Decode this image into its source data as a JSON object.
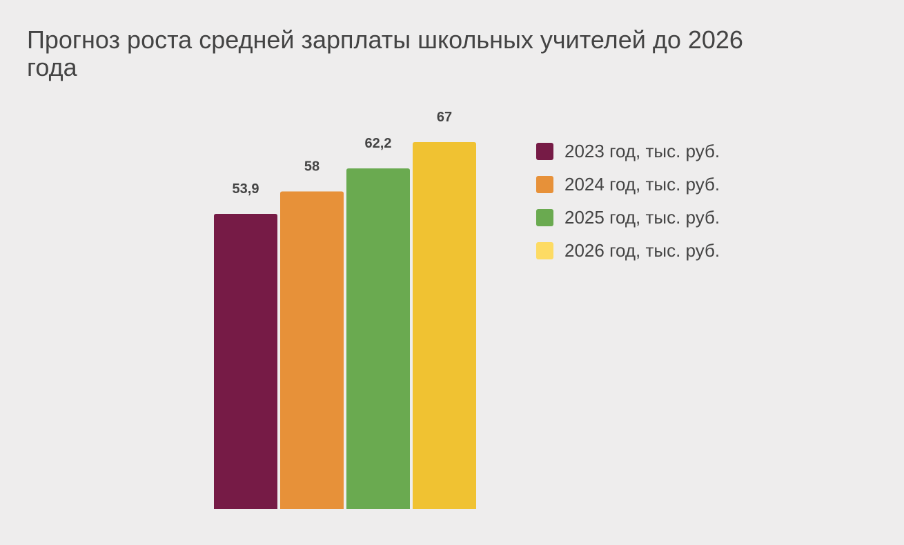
{
  "chart_data": {
    "type": "bar",
    "title": "Прогноз роста средней зарплаты школьных учителей до 2026 года",
    "series": [
      {
        "name": "2023 год, тыс. руб.",
        "value": 53.9,
        "label": "53,9",
        "color": "#761b46"
      },
      {
        "name": "2024 год, тыс. руб.",
        "value": 58,
        "label": "58",
        "color": "#e79139"
      },
      {
        "name": "2025 год, тыс. руб.",
        "value": 62.2,
        "label": "62,2",
        "color": "#6aaa50"
      },
      {
        "name": "2026 год, тыс. руб.",
        "value": 67,
        "label": "67",
        "color": "#f0c232"
      }
    ],
    "legend_colors": [
      "#761b46",
      "#e79139",
      "#6aaa50",
      "#fddb63"
    ],
    "ylim": [
      0,
      67
    ],
    "grid": false,
    "legend_position": "right"
  }
}
